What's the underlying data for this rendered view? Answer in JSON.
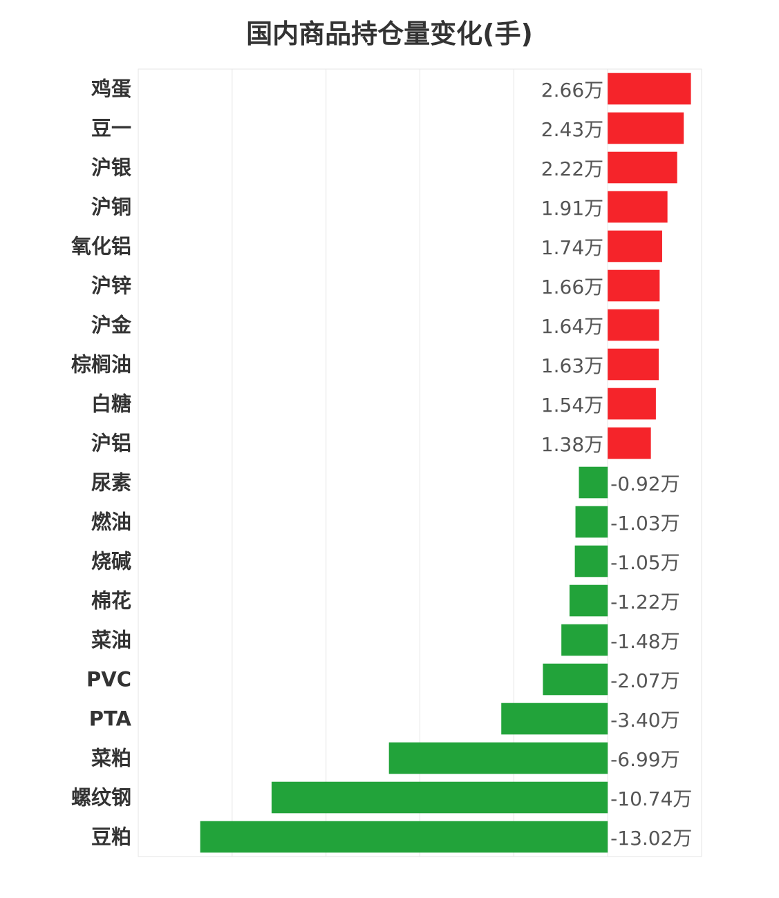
{
  "chart_data": {
    "type": "bar",
    "orientation": "horizontal",
    "title": "国内商品持仓量变化(手)",
    "unit": "万",
    "categories": [
      "鸡蛋",
      "豆一",
      "沪银",
      "沪铜",
      "氧化铝",
      "沪锌",
      "沪金",
      "棕榈油",
      "白糖",
      "沪铝",
      "尿素",
      "燃油",
      "烧碱",
      "棉花",
      "菜油",
      "PVC",
      "PTA",
      "菜粕",
      "螺纹钢",
      "豆粕"
    ],
    "values": [
      2.66,
      2.43,
      2.22,
      1.91,
      1.74,
      1.66,
      1.64,
      1.63,
      1.54,
      1.38,
      -0.92,
      -1.03,
      -1.05,
      -1.22,
      -1.48,
      -2.07,
      -3.4,
      -6.99,
      -10.74,
      -13.02
    ],
    "value_labels": [
      "2.66万",
      "2.43万",
      "2.22万",
      "1.91万",
      "1.74万",
      "1.66万",
      "1.64万",
      "1.63万",
      "1.54万",
      "1.38万",
      "-0.92万",
      "-1.03万",
      "-1.05万",
      "-1.22万",
      "-1.48万",
      "-2.07万",
      "-3.40万",
      "-6.99万",
      "-10.74万",
      "-13.02万"
    ],
    "xlim": [
      -15,
      3
    ],
    "grid": true,
    "colors": {
      "positive": "#f5242a",
      "negative": "#22a33a",
      "grid": "#e5e5e5"
    }
  }
}
